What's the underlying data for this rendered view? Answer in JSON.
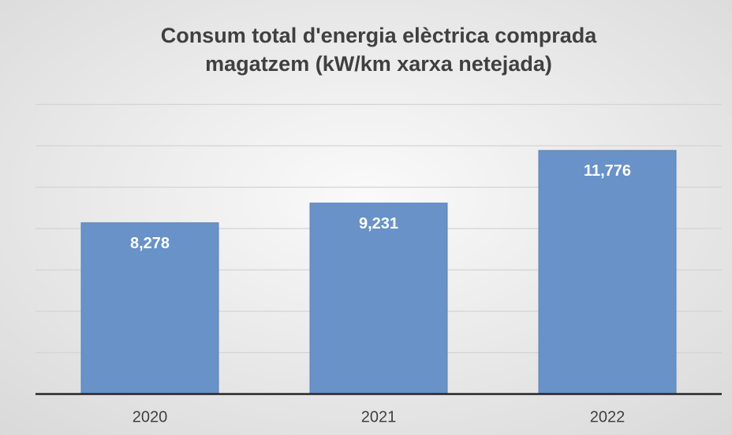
{
  "chart_data": {
    "type": "bar",
    "title": [
      "Consum total d'energia elèctrica comprada",
      "magatzem (kW/km xarxa netejada)"
    ],
    "categories": [
      "2020",
      "2021",
      "2022"
    ],
    "values": [
      8278,
      9231,
      11776
    ],
    "value_labels": [
      "8,278",
      "9,231",
      "11,776"
    ],
    "color": "#6892c8",
    "ylim": [
      0,
      14000
    ],
    "yticks": [
      0,
      2000,
      4000,
      6000,
      8000,
      10000,
      12000,
      14000
    ],
    "grid": true
  }
}
